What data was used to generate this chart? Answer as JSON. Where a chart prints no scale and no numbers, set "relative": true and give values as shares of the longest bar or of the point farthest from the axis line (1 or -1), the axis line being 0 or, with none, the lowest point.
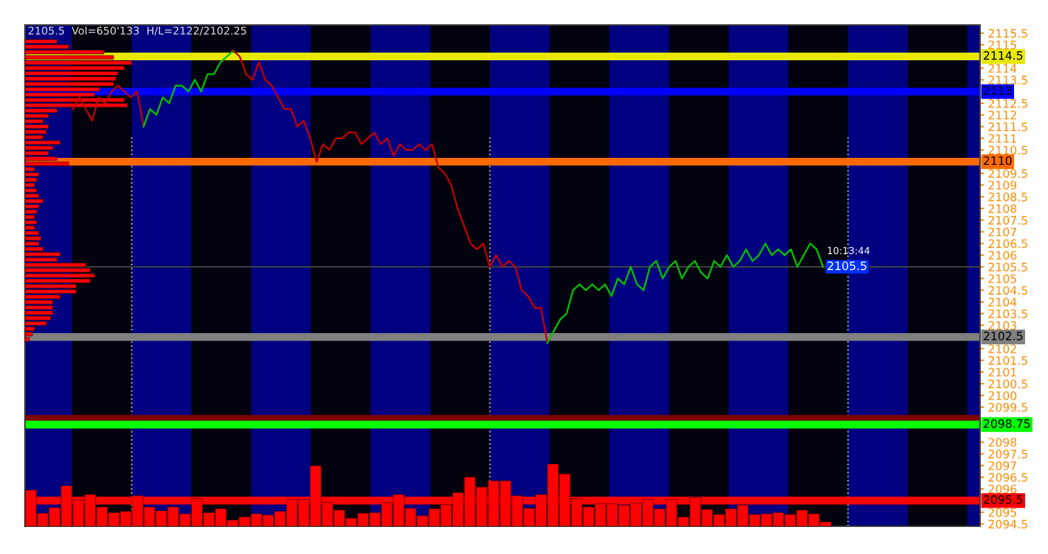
{
  "chart_data": [
    {
      "type": "line",
      "title": "2105.5  Vol=650'133  H/L=2122/2102.25",
      "categories": [
        null,
        null,
        null,
        null,
        null,
        null,
        null,
        null,
        null,
        null,
        null,
        null,
        null,
        null,
        null,
        null,
        null,
        null,
        null,
        null,
        null,
        null,
        null,
        null,
        null,
        null,
        null,
        null,
        null,
        null,
        null,
        null,
        null,
        null,
        null,
        null,
        null,
        null,
        null,
        null,
        null,
        null,
        null,
        null,
        null,
        null,
        null,
        null,
        null,
        null,
        null,
        null,
        null,
        null,
        null,
        null,
        null,
        null,
        null,
        null,
        null,
        null,
        null,
        null,
        null,
        null,
        null,
        null,
        null,
        null,
        null,
        null,
        null,
        null,
        null,
        null,
        null,
        null,
        null,
        null,
        null,
        null,
        null,
        null,
        null,
        null,
        null,
        null,
        null,
        null,
        null,
        null,
        null,
        null,
        null,
        null,
        null,
        null,
        null,
        null,
        null,
        null,
        null,
        null,
        null,
        null,
        null,
        null,
        null,
        null,
        null,
        null,
        null,
        null,
        null,
        null,
        null,
        null,
        null,
        null,
        null,
        null,
        null,
        null,
        null,
        null,
        null,
        null,
        null,
        null,
        null,
        null,
        null,
        null,
        null,
        null,
        null,
        null,
        null,
        null,
        null,
        null,
        null,
        null,
        null,
        null,
        null,
        null,
        null
      ],
      "series": [
        {
          "color": "#c00000",
          "values": [
            null,
            null,
            null,
            null,
            null,
            null,
            null,
            2112.25,
            2112.75,
            2112.25,
            2111.75,
            2112.75,
            2112.5,
            2113,
            2113.25,
            2113,
            2112.75,
            2113,
            2111.5,
            null,
            null,
            null,
            null,
            null,
            null,
            null,
            null,
            null,
            null,
            null,
            null,
            null,
            null,
            null,
            null,
            null,
            null,
            null,
            null,
            null,
            null,
            null,
            null,
            null,
            null,
            null,
            null,
            null,
            null,
            null,
            null,
            null,
            null,
            null,
            null,
            null,
            null,
            null,
            null,
            null,
            null,
            null,
            null,
            null,
            null,
            null,
            null,
            null,
            null,
            null,
            null,
            null,
            null,
            null,
            null,
            null,
            null,
            null,
            null,
            null,
            null,
            null,
            null,
            null,
            null,
            null,
            null,
            null,
            null,
            null,
            null,
            null,
            null,
            null,
            null,
            null,
            null,
            null,
            null,
            null,
            null,
            null,
            null,
            null,
            null,
            null,
            null,
            null,
            null,
            null,
            null,
            null,
            null,
            null,
            null,
            null,
            null,
            null,
            null,
            null,
            null,
            null,
            null,
            null,
            null,
            null,
            null,
            null,
            null,
            null,
            null,
            null,
            null,
            null,
            null,
            null,
            null,
            null,
            null,
            null,
            null,
            null,
            null,
            null,
            null,
            null,
            null,
            null,
            null
          ]
        },
        {
          "color": "#00c000",
          "values": [
            null,
            null,
            null,
            null,
            null,
            null,
            null,
            null,
            null,
            null,
            null,
            null,
            null,
            null,
            null,
            null,
            null,
            null,
            2111.5,
            2112.25,
            2112,
            2112.75,
            2112.5,
            2113.25,
            2113.25,
            2113,
            2113.5,
            2113,
            2113.75,
            2113.75,
            2114.25,
            2114.5,
            2114.75,
            null,
            null,
            null,
            null,
            null,
            null,
            null,
            null,
            null,
            null,
            null,
            null,
            null,
            null,
            null,
            null,
            null,
            null,
            null,
            null,
            null,
            null,
            null,
            null,
            null,
            null,
            null,
            null,
            null,
            null,
            null,
            null,
            null,
            null,
            null,
            null,
            null,
            null,
            null,
            null,
            null,
            null,
            null,
            null,
            null,
            null,
            null,
            null,
            null,
            null,
            null,
            null,
            null,
            null,
            null,
            null,
            null,
            null,
            null,
            null,
            null,
            null,
            null,
            null,
            null,
            null,
            null,
            null,
            null,
            null,
            null,
            null,
            null,
            null,
            null,
            null,
            null,
            null,
            null,
            null,
            null,
            null,
            null,
            null,
            null,
            null,
            null,
            null,
            null,
            null,
            null,
            null,
            null,
            null,
            null,
            null,
            null,
            null,
            null,
            null,
            null,
            null,
            null,
            null,
            null,
            null,
            null,
            null,
            null,
            null,
            null,
            null,
            null,
            null,
            null,
            null
          ]
        },
        {
          "color": "#c00000",
          "values": [
            null,
            null,
            null,
            null,
            null,
            null,
            null,
            null,
            null,
            null,
            null,
            null,
            null,
            null,
            null,
            null,
            null,
            null,
            null,
            null,
            null,
            null,
            null,
            null,
            null,
            null,
            null,
            null,
            null,
            null,
            null,
            null,
            2114.75,
            2114.5,
            2113.75,
            2113.5,
            2114.25,
            2113.5,
            2113.25,
            2112.75,
            2112.25,
            2112.25,
            2111.5,
            2111.75,
            2111,
            2110,
            2110.75,
            2110.5,
            2111,
            2111,
            2111.25,
            2111.25,
            2110.75,
            2111,
            2111.25,
            2110.75,
            2111,
            2110.25,
            2110.75,
            2110.5,
            2110.5,
            2110.75,
            2110.5,
            2110.75,
            2109.75,
            2109.5,
            2109,
            2108,
            2107.25,
            2106.5,
            2106.25,
            2106.5,
            2105.5,
            2106,
            2105.5,
            2105.75,
            2105.5,
            2104.5,
            2104.25,
            2103.75,
            2103.75,
            2102.25,
            null,
            null,
            null,
            null,
            null,
            null,
            null,
            null,
            null,
            null,
            null,
            null,
            null,
            null,
            null,
            null,
            null,
            null,
            null,
            null,
            null,
            null,
            null,
            null,
            null,
            null,
            null,
            null,
            null,
            null,
            null,
            null,
            null,
            null,
            null,
            null,
            null,
            null,
            null,
            null,
            null,
            null,
            null,
            null,
            null,
            null,
            null,
            null,
            null,
            null,
            null,
            null,
            null,
            null,
            null,
            null,
            null,
            null,
            null,
            null,
            null,
            null,
            null,
            null,
            null,
            null,
            null
          ]
        },
        {
          "color": "#00c000",
          "values": [
            null,
            null,
            null,
            null,
            null,
            null,
            null,
            null,
            null,
            null,
            null,
            null,
            null,
            null,
            null,
            null,
            null,
            null,
            null,
            null,
            null,
            null,
            null,
            null,
            null,
            null,
            null,
            null,
            null,
            null,
            null,
            null,
            null,
            null,
            null,
            null,
            null,
            null,
            null,
            null,
            null,
            null,
            null,
            null,
            null,
            null,
            null,
            null,
            null,
            null,
            null,
            null,
            null,
            null,
            null,
            null,
            null,
            null,
            null,
            null,
            null,
            null,
            null,
            null,
            null,
            null,
            null,
            null,
            null,
            null,
            null,
            null,
            null,
            null,
            null,
            null,
            null,
            null,
            null,
            null,
            null,
            2102.25,
            2102.75,
            2103.25,
            2103.5,
            2104.5,
            2104.75,
            2104.5,
            2104.75,
            2104.5,
            2104.75,
            2104.25,
            2105,
            2104.75,
            2105.5,
            2104.75,
            2104.5,
            2105.5,
            2105.75,
            2105,
            2105.5,
            2105.75,
            2105,
            2105.5,
            2105.75,
            2105.25,
            2105,
            2105.75,
            2105.5,
            2106,
            2105.5,
            2105.75,
            2106.25,
            2105.75,
            2106,
            2106.5,
            2106,
            2106.25,
            2106,
            2106.25,
            2105.5,
            2106,
            2106.5,
            2106.25,
            2105.5,
            null,
            null,
            null,
            null,
            null,
            null,
            null,
            null,
            null,
            null,
            null,
            null,
            null,
            null,
            null,
            null,
            null,
            null,
            null,
            null,
            null,
            null,
            null,
            null
          ]
        }
      ],
      "ylim": [
        2094.4,
        2115.85
      ],
      "yticks": [
        2094.5,
        2095,
        2096,
        2096.5,
        2097,
        2097.5,
        2098,
        2099.5,
        2100,
        2100.5,
        2101,
        2101.5,
        2102,
        2103,
        2103.5,
        2104,
        2104.5,
        2105,
        2105.5,
        2106,
        2106.5,
        2107,
        2107.5,
        2108,
        2108.5,
        2109,
        2109.5,
        2110.5,
        2111,
        2111.5,
        2112,
        2112.5,
        2113.5,
        2114,
        2115,
        2115.5
      ],
      "tick_labels": "y",
      "ref_lines": [
        {
          "axis": "y",
          "value": 2114.5,
          "label": "2114.5",
          "color": "#e8e800"
        },
        {
          "axis": "y",
          "value": 2113,
          "label": "2113",
          "color": "#0000ff"
        },
        {
          "axis": "y",
          "value": 2110,
          "label": "2110",
          "color": "#ff6a00"
        },
        {
          "axis": "y",
          "value": 2105.5,
          "color": "#404040",
          "line_style": "solid"
        },
        {
          "axis": "y",
          "value": 2102.5,
          "label": "2102.5",
          "color": "#808080"
        },
        {
          "axis": "y",
          "value": 2099,
          "color": "#800000"
        },
        {
          "axis": "y",
          "value": 2098.75,
          "label": "2098.75",
          "color": "#00ff00"
        },
        {
          "axis": "y",
          "value": 2095.5,
          "label": "2095.5",
          "color": "#ff0000"
        }
      ],
      "annotations": [
        {
          "text": "10:13:44",
          "y": 2105.5
        },
        {
          "text": "2105.5",
          "y": 2105.5
        }
      ]
    },
    {
      "type": "bar",
      "relative": true,
      "color": "#ff0000",
      "tick_labels": false,
      "categories": [
        null,
        null,
        null,
        null,
        null,
        null,
        null,
        null,
        null,
        null,
        null,
        null,
        null,
        null,
        null,
        null,
        null,
        null,
        null,
        null,
        null,
        null,
        null,
        null,
        null,
        null,
        null,
        null,
        null,
        null,
        null,
        null,
        null,
        null,
        null,
        null,
        null,
        null,
        null,
        null,
        null,
        null,
        null,
        null,
        null,
        null,
        null,
        null,
        null,
        null,
        null,
        null,
        null,
        null,
        null,
        null,
        null,
        null,
        null,
        null,
        null,
        null,
        null,
        null,
        null,
        null,
        null,
        null
      ],
      "values": [
        0.58,
        0.21,
        0.3,
        0.65,
        0.42,
        0.51,
        0.31,
        0.22,
        0.24,
        0.49,
        0.31,
        0.25,
        0.31,
        0.2,
        0.45,
        0.22,
        0.28,
        0.1,
        0.15,
        0.2,
        0.18,
        0.24,
        0.43,
        0.43,
        0.97,
        0.38,
        0.26,
        0.13,
        0.21,
        0.22,
        0.38,
        0.51,
        0.29,
        0.17,
        0.28,
        0.35,
        0.54,
        0.79,
        0.63,
        0.73,
        0.73,
        0.49,
        0.29,
        0.51,
        1,
        0.84,
        0.45,
        0.31,
        0.36,
        0.36,
        0.34,
        0.37,
        0.43,
        0.28,
        0.43,
        0.15,
        0.46,
        0.27,
        0.19,
        0.28,
        0.34,
        0.19,
        0.2,
        0.22,
        0.19,
        0.26,
        0.2,
        0.07
      ]
    },
    {
      "type": "bar",
      "orientation": "horizontal",
      "relative": true,
      "color": "#ff0000",
      "tick_labels": false,
      "categories": [
        null,
        null,
        null,
        null,
        null,
        null,
        null,
        null,
        null,
        null,
        null,
        null,
        null,
        null,
        null,
        null,
        null,
        null,
        null,
        null,
        null,
        null,
        null,
        null,
        null,
        null,
        null,
        null,
        null,
        null,
        null,
        null,
        null,
        null,
        null,
        null,
        null,
        null,
        null,
        null,
        null,
        null,
        null,
        null,
        null,
        null,
        null,
        null,
        null,
        null,
        null,
        null,
        null,
        null,
        null,
        null,
        null
      ],
      "values": [
        0.3,
        0.41,
        0.74,
        0.83,
        1,
        0.93,
        0.87,
        0.85,
        0.83,
        0.7,
        0.65,
        0.93,
        0.96,
        0.3,
        0.22,
        0.17,
        0.22,
        0.2,
        0.17,
        0.33,
        0.26,
        0.22,
        0.3,
        0.41,
        0.09,
        0.13,
        0.11,
        0.09,
        0.11,
        0.13,
        0.17,
        0.13,
        0.11,
        0.09,
        0.11,
        0.09,
        0.13,
        0.15,
        0.13,
        0.17,
        0.33,
        0.3,
        0.57,
        0.61,
        0.65,
        0.61,
        0.48,
        0.48,
        0.33,
        0.26,
        0.26,
        0.26,
        0.24,
        0.2,
        0.09,
        0.07,
        0.04
      ]
    }
  ]
}
